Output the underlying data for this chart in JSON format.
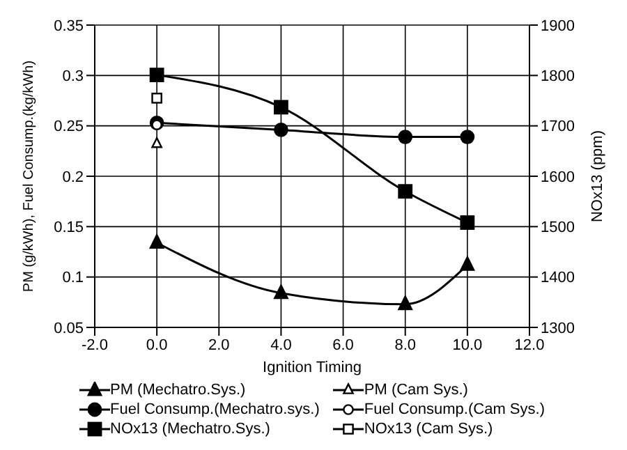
{
  "chart_data": {
    "type": "line",
    "xlabel": "Ignition Timing",
    "ylabel": "PM (g/kWh), Fuel Consump.(kg/kWh)",
    "y2label": "NOx13 (ppm)",
    "x": [
      0,
      4,
      8,
      10
    ],
    "xlim": [
      -2,
      12
    ],
    "xticks": [
      {
        "value": -2,
        "label": "-2.0"
      },
      {
        "value": 0,
        "label": "0.0"
      },
      {
        "value": 2,
        "label": "2.0"
      },
      {
        "value": 4,
        "label": "4.0"
      },
      {
        "value": 6,
        "label": "6.0"
      },
      {
        "value": 8,
        "label": "8.0"
      },
      {
        "value": 10,
        "label": "10.0"
      },
      {
        "value": 12,
        "label": "12.0"
      }
    ],
    "ylim": [
      0.05,
      0.35
    ],
    "yticks": [
      0.05,
      0.1,
      0.15,
      0.2,
      0.25,
      0.3,
      0.35
    ],
    "y2lim": [
      1300,
      1900
    ],
    "y2ticks": [
      1300,
      1400,
      1500,
      1600,
      1700,
      1800,
      1900
    ],
    "grid": true,
    "legend": "bottom",
    "series": [
      {
        "name": "PM (Mechatro.Sys.)",
        "color": "#000000",
        "marker": "triangle",
        "values": [
          0.134,
          0.084,
          0.073,
          0.112
        ]
      },
      {
        "name": "PM (Cam Sys.)",
        "type": "scatter",
        "color": "#000000",
        "marker": "triangle",
        "values": [
          0.232,
          null,
          null,
          null
        ]
      },
      {
        "name": "Fuel Consump.(Mechatro.sys.)",
        "color": "#000000",
        "marker": "circle",
        "values": [
          0.253,
          0.246,
          0.239,
          0.239
        ]
      },
      {
        "name": "Fuel Consump.(Cam Sys.)",
        "type": "scatter",
        "color": "#000000",
        "marker": "circle",
        "values": [
          0.251,
          null,
          null,
          null
        ]
      },
      {
        "name": "NOx13 (Mechatro.Sys.)",
        "color": "#000000",
        "marker": "square",
        "axis": "y2",
        "values": [
          1801,
          1737,
          1570,
          1508
        ]
      },
      {
        "name": "NOx13 (Cam Sys.)",
        "type": "scatter",
        "color": "#000000",
        "marker": "square",
        "axis": "y2",
        "values": [
          1755,
          null,
          null,
          null
        ]
      }
    ]
  }
}
